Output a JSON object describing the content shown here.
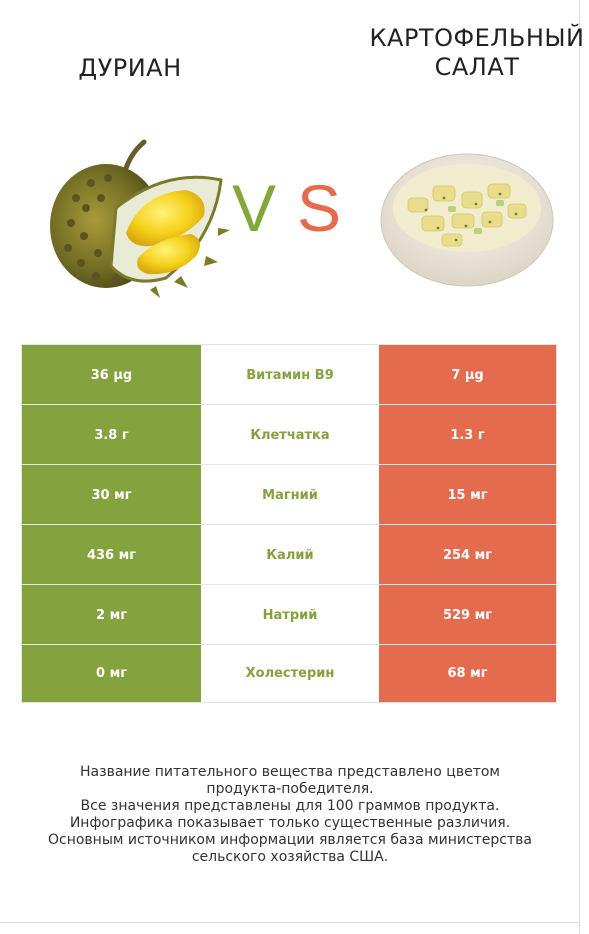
{
  "left_food": {
    "title": "ДУРИАН",
    "image": "durian-fruit"
  },
  "right_food": {
    "title_line1": "КАРТОФЕЛЬНЫЙ",
    "title_line2": "САЛАТ",
    "image": "potato-salad-bowl"
  },
  "vs": {
    "v": "V",
    "s": "S"
  },
  "colors": {
    "left": "#84a23d",
    "right": "#e56b4e"
  },
  "rows": [
    {
      "nutrient": "Витамин B9",
      "left": "36 µg",
      "right": "7 µg",
      "winner": "left"
    },
    {
      "nutrient": "Клетчатка",
      "left": "3.8 г",
      "right": "1.3 г",
      "winner": "left"
    },
    {
      "nutrient": "Магний",
      "left": "30 мг",
      "right": "15 мг",
      "winner": "left"
    },
    {
      "nutrient": "Калий",
      "left": "436 мг",
      "right": "254 мг",
      "winner": "left"
    },
    {
      "nutrient": "Натрий",
      "left": "2 мг",
      "right": "529 мг",
      "winner": "left"
    },
    {
      "nutrient": "Холестерин",
      "left": "0 мг",
      "right": "68 мг",
      "winner": "left"
    }
  ],
  "footer": [
    "Название питательного вещества представлено цветом",
    "продукта-победителя.",
    "Все значения представлены для 100 граммов продукта.",
    "Инфографика показывает только существенные различия.",
    "Основным источником информации является база министерства",
    "сельского хозяйства США."
  ]
}
